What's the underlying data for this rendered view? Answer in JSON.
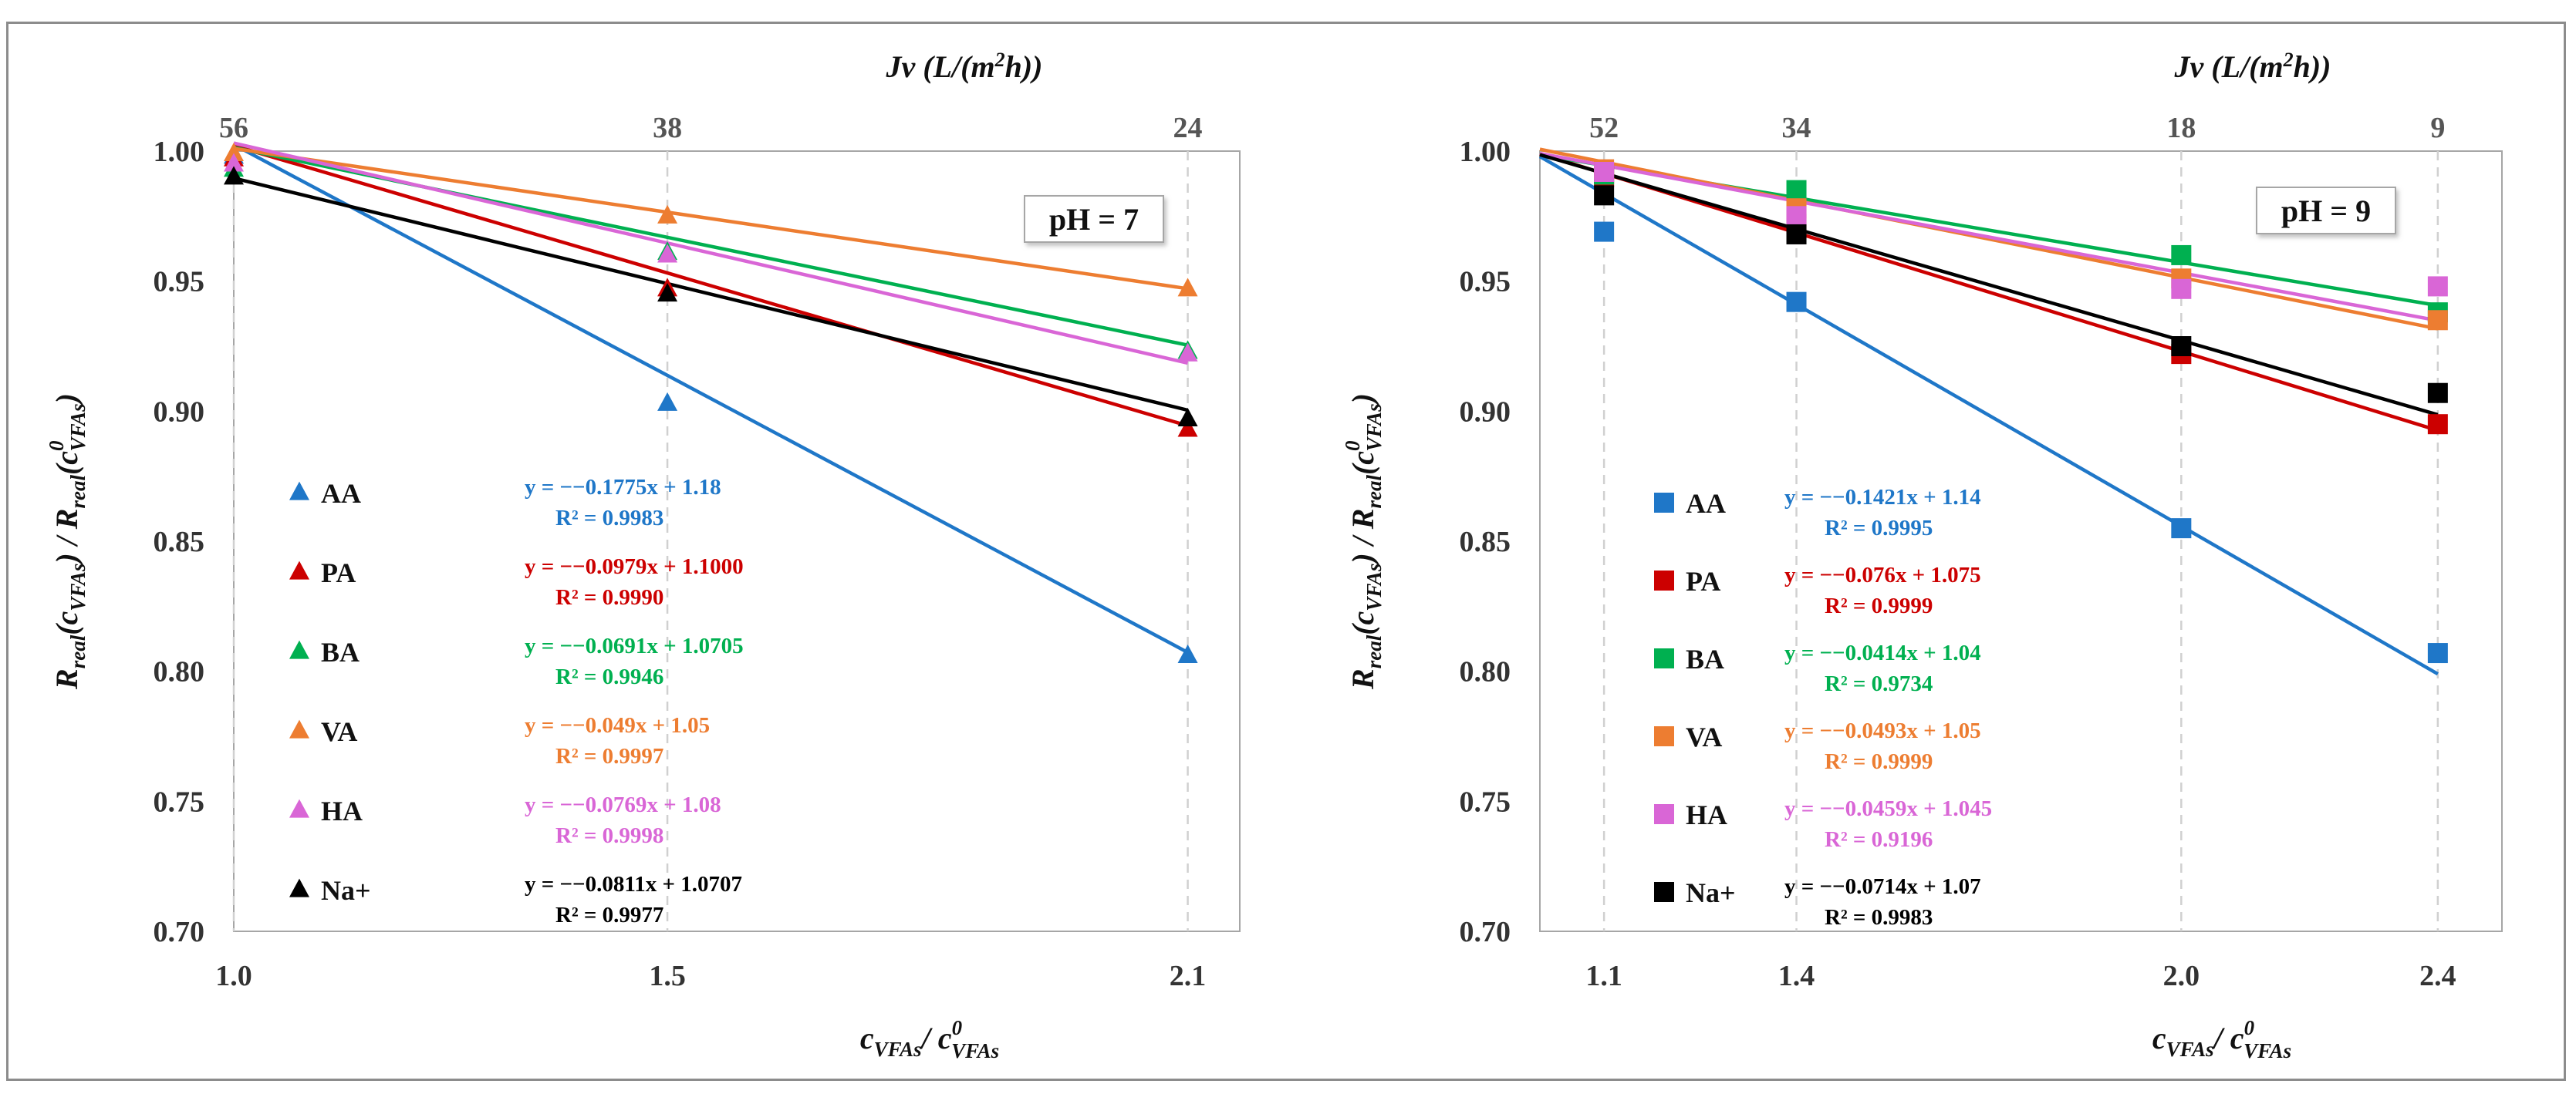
{
  "chart_data": [
    {
      "type": "scatter",
      "marker": "triangle",
      "title": "",
      "xlabel": "c_VFAs / c0_VFAs",
      "ylabel": "Rreal(cVFAs) / Rreal(c0VFAs)",
      "top_xlabel": "Jv (L/(m2h))",
      "ph_label": "pH = 7",
      "x_ticks": [
        "1.0",
        "1.5",
        "2.1"
      ],
      "x_tick_values": [
        1.0,
        1.5,
        2.1
      ],
      "top_ticks": [
        "56",
        "38",
        "24"
      ],
      "xlim": [
        1.0,
        2.16
      ],
      "ylim": [
        0.7,
        1.0
      ],
      "y_ticks": [
        "0.70",
        "0.75",
        "0.80",
        "0.85",
        "0.90",
        "0.95",
        "1.00"
      ],
      "y_tick_values": [
        0.7,
        0.75,
        0.8,
        0.85,
        0.9,
        0.95,
        1.0
      ],
      "grid": "vertical dashed at ticks",
      "legend_position": "left",
      "series": [
        {
          "name": "AA",
          "color": "#1f77c8",
          "x": [
            1.0,
            1.5,
            2.1
          ],
          "y": [
            0.998,
            0.903,
            0.806
          ],
          "fit": {
            "slope": -0.1775,
            "intercept": 1.18
          },
          "eq": "y = −−0.1775x + 1.18",
          "r2": "R² = 0.9983"
        },
        {
          "name": "PA",
          "color": "#cc0000",
          "x": [
            1.0,
            1.5,
            2.1
          ],
          "y": [
            0.997,
            0.947,
            0.893
          ],
          "fit": {
            "slope": -0.0979,
            "intercept": 1.1
          },
          "eq": "y = −−0.0979x + 1.1000",
          "r2": "R² = 0.9990"
        },
        {
          "name": "BA",
          "color": "#00b050",
          "x": [
            1.0,
            1.5,
            2.1
          ],
          "y": [
            0.993,
            0.961,
            0.923
          ],
          "fit": {
            "slope": -0.0691,
            "intercept": 1.0705
          },
          "eq": "y = −−0.0691x + 1.0705",
          "r2": "R² = 0.9946"
        },
        {
          "name": "VA",
          "color": "#ed7d31",
          "x": [
            1.0,
            1.5,
            2.1
          ],
          "y": [
            0.999,
            0.975,
            0.947
          ],
          "fit": {
            "slope": -0.049,
            "intercept": 1.05
          },
          "eq": "y = −−0.049x + 1.05",
          "r2": "R² = 0.9997"
        },
        {
          "name": "HA",
          "color": "#d966d6",
          "x": [
            1.0,
            1.5,
            2.1
          ],
          "y": [
            0.995,
            0.96,
            0.922
          ],
          "fit": {
            "slope": -0.0769,
            "intercept": 1.08
          },
          "eq": "y = −−0.0769x + 1.08",
          "r2": "R² = 0.9998"
        },
        {
          "name": "Na+",
          "color": "#000000",
          "x": [
            1.0,
            1.5,
            2.1
          ],
          "y": [
            0.99,
            0.945,
            0.897
          ],
          "fit": {
            "slope": -0.0811,
            "intercept": 1.0707
          },
          "eq": "y = −−0.0811x + 1.0707",
          "r2": "R² = 0.9977"
        }
      ]
    },
    {
      "type": "scatter",
      "marker": "square",
      "title": "",
      "xlabel": "c_VFAs / c0_VFAs",
      "ylabel": "Rreal(cVFAs) / Rreal(c0VFAs)",
      "top_xlabel": "Jv (L/(m2h))",
      "ph_label": "pH = 9",
      "x_ticks": [
        "1.1",
        "1.4",
        "2.0",
        "2.4"
      ],
      "x_tick_values": [
        1.1,
        1.4,
        2.0,
        2.4
      ],
      "top_ticks": [
        "52",
        "34",
        "18",
        "9"
      ],
      "xlim": [
        1.0,
        2.5
      ],
      "ylim": [
        0.7,
        1.0
      ],
      "y_ticks": [
        "0.70",
        "0.75",
        "0.80",
        "0.85",
        "0.90",
        "0.95",
        "1.00"
      ],
      "y_tick_values": [
        0.7,
        0.75,
        0.8,
        0.85,
        0.9,
        0.95,
        1.0
      ],
      "grid": "vertical dashed at ticks",
      "legend_position": "left",
      "series": [
        {
          "name": "AA",
          "color": "#1f77c8",
          "x": [
            1.1,
            1.4,
            2.0,
            2.4
          ],
          "y": [
            0.969,
            0.942,
            0.855,
            0.807
          ],
          "fit": {
            "slope": -0.1421,
            "intercept": 1.14
          },
          "eq": "y = −−0.1421x + 1.14",
          "r2": "R² = 0.9995"
        },
        {
          "name": "PA",
          "color": "#cc0000",
          "x": [
            1.1,
            1.4,
            2.0,
            2.4
          ],
          "y": [
            0.99,
            0.972,
            0.922,
            0.895
          ],
          "fit": {
            "slope": -0.076,
            "intercept": 1.075
          },
          "eq": "y = −−0.076x + 1.075",
          "r2": "R² = 0.9999"
        },
        {
          "name": "BA",
          "color": "#00b050",
          "x": [
            1.1,
            1.4,
            2.0,
            2.4
          ],
          "y": [
            0.991,
            0.985,
            0.96,
            0.938
          ],
          "fit": {
            "slope": -0.0414,
            "intercept": 1.04
          },
          "eq": "y = −−0.0414x + 1.04",
          "r2": "R² = 0.9734"
        },
        {
          "name": "VA",
          "color": "#ed7d31",
          "x": [
            1.1,
            1.4,
            2.0,
            2.4
          ],
          "y": [
            0.993,
            0.978,
            0.951,
            0.935
          ],
          "fit": {
            "slope": -0.0493,
            "intercept": 1.05
          },
          "eq": "y = −−0.0493x + 1.05",
          "r2": "R² = 0.9999"
        },
        {
          "name": "HA",
          "color": "#d966d6",
          "x": [
            1.1,
            1.4,
            2.0,
            2.4
          ],
          "y": [
            0.992,
            0.975,
            0.947,
            0.948
          ],
          "fit": {
            "slope": -0.0459,
            "intercept": 1.045
          },
          "eq": "y = −−0.0459x + 1.045",
          "r2": "R² = 0.9196"
        },
        {
          "name": "Na+",
          "color": "#000000",
          "x": [
            1.1,
            1.4,
            2.0,
            2.4
          ],
          "y": [
            0.983,
            0.968,
            0.925,
            0.907
          ],
          "fit": {
            "slope": -0.0714,
            "intercept": 1.07
          },
          "eq": "y = −−0.0714x + 1.07",
          "r2": "R² = 0.9983"
        }
      ]
    }
  ]
}
